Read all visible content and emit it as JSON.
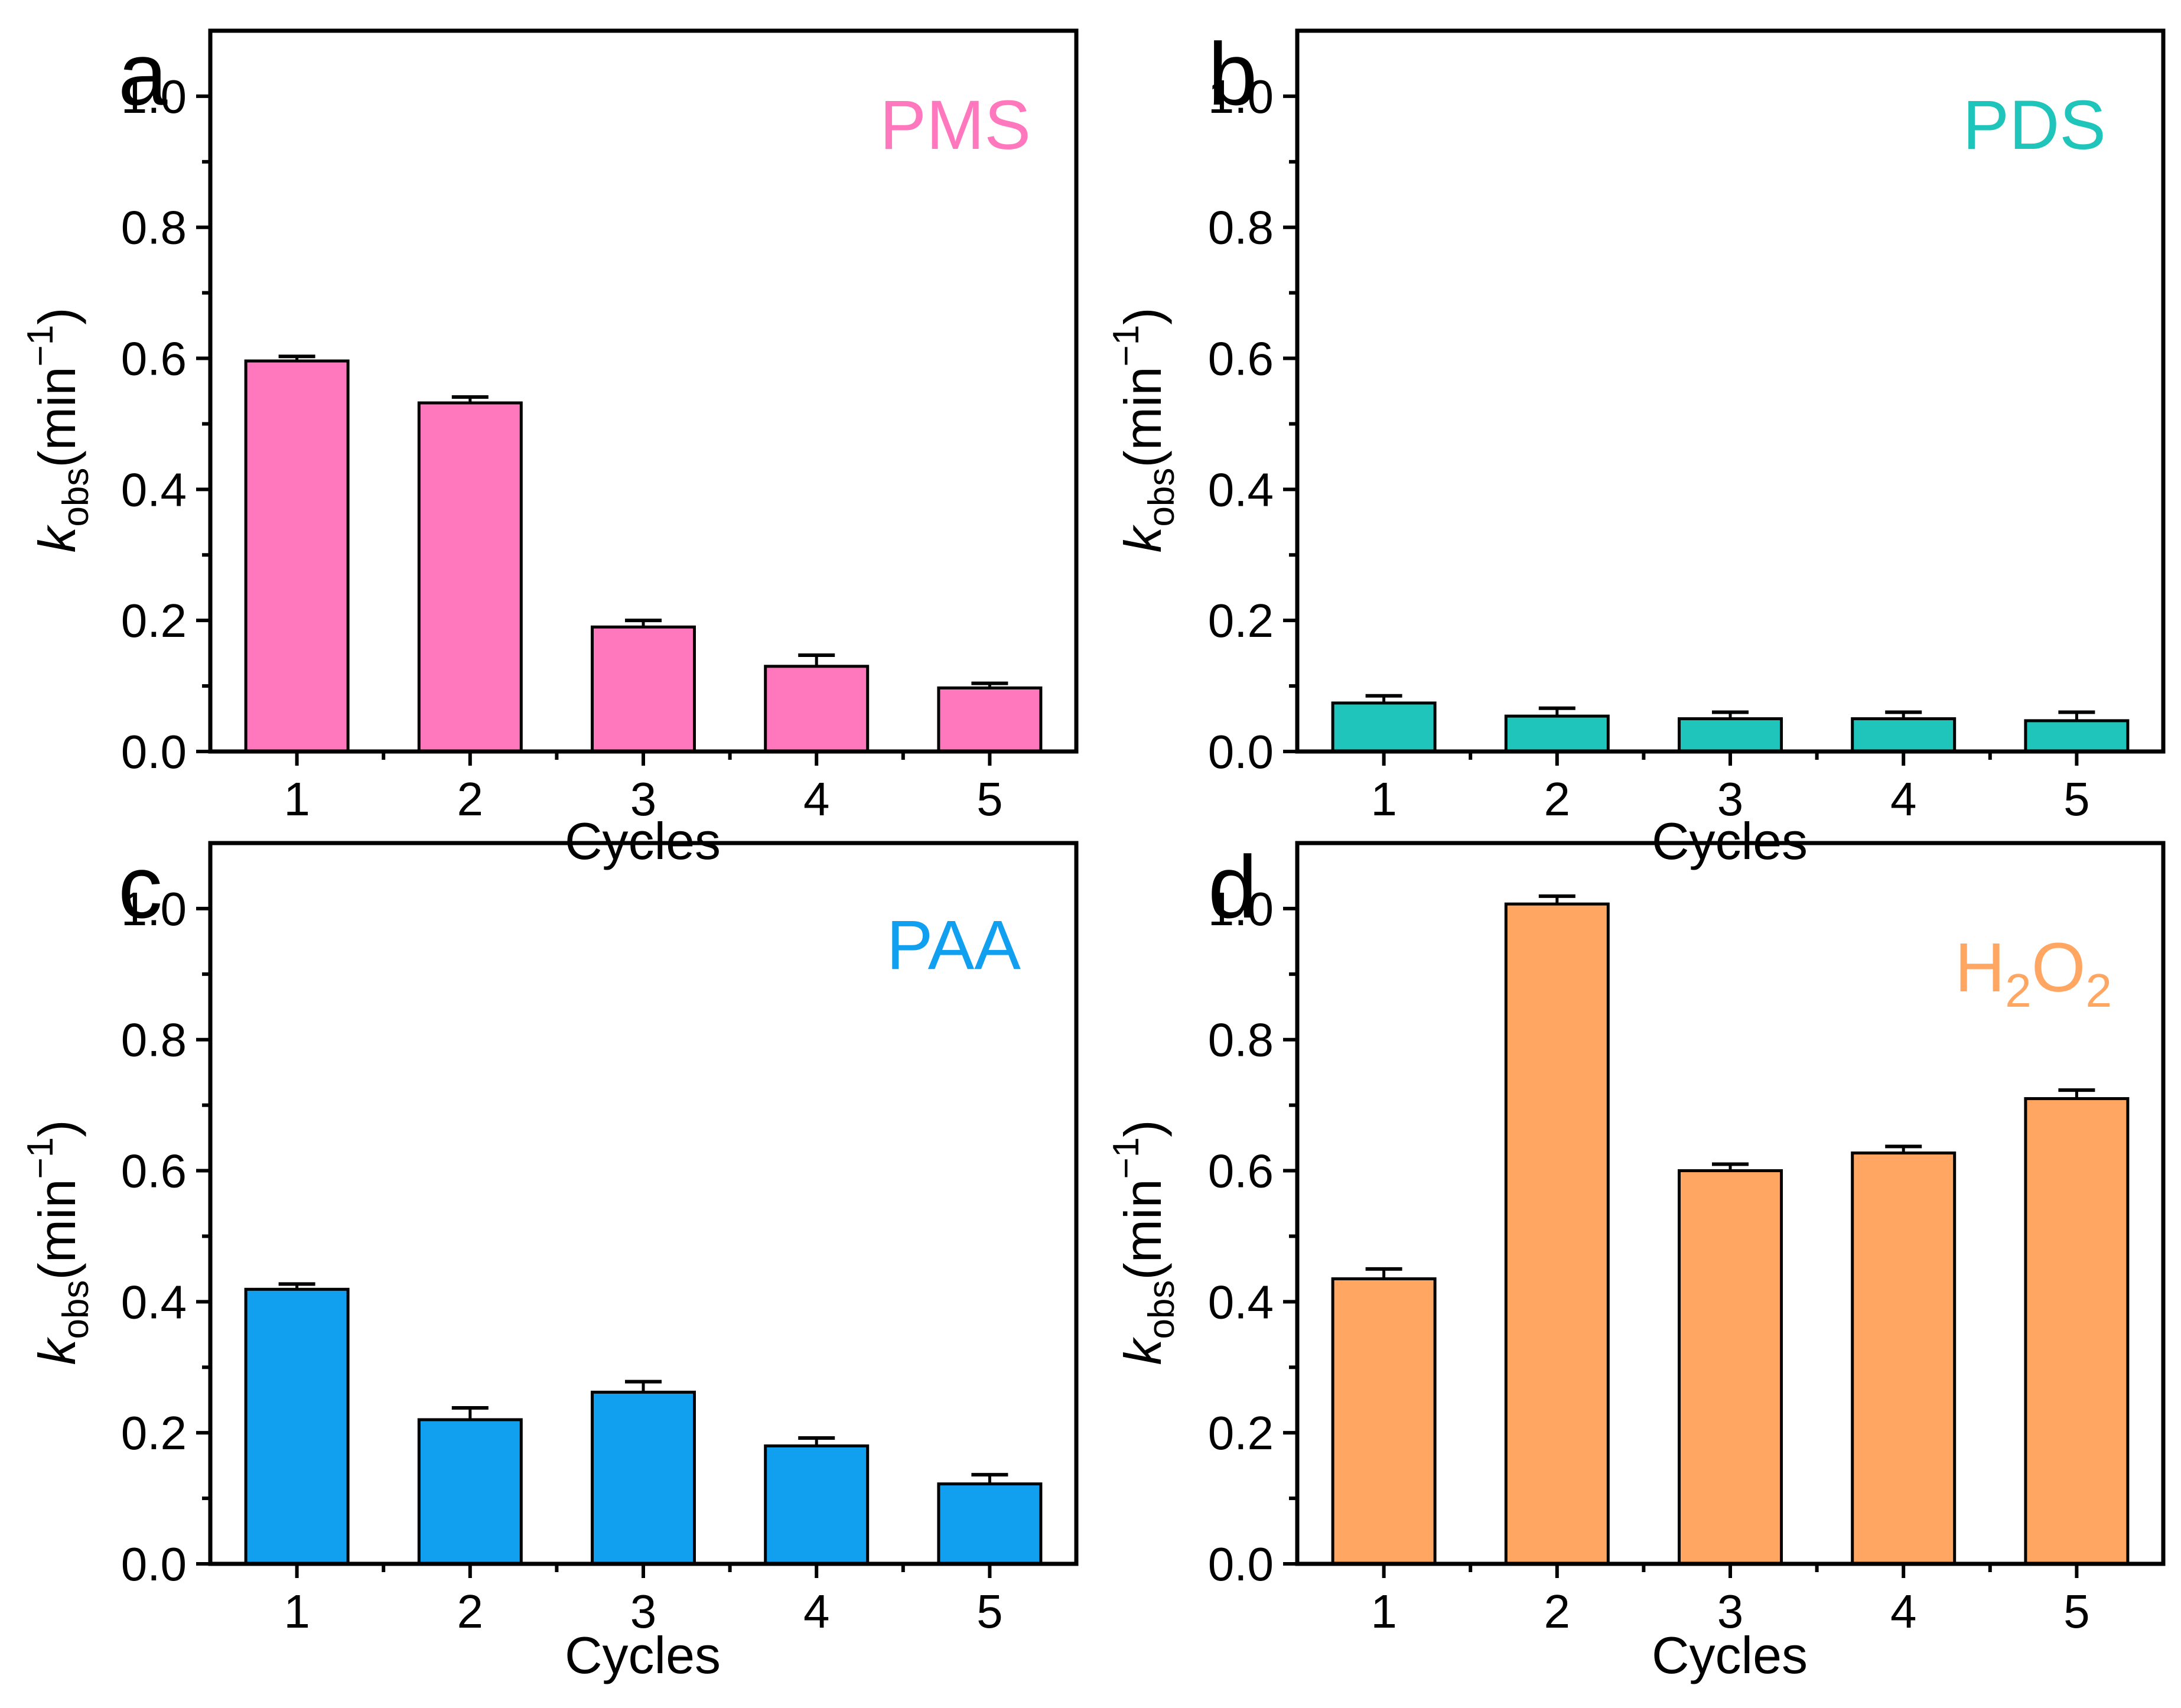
{
  "figure": {
    "y_axis": {
      "symbol": "k",
      "subscript": "obs",
      "unit_open": "(min",
      "unit_exponent": "−1",
      "unit_close": ")",
      "ylim": [
        0,
        1.1
      ],
      "ticks": [
        "0.0",
        "0.2",
        "0.4",
        "0.6",
        "0.8",
        "1.0"
      ]
    },
    "x_axis": {
      "label": "Cycles"
    }
  },
  "chart_data": [
    {
      "type": "bar",
      "panel_letter": "a",
      "oxidant_label": {
        "text": "PMS"
      },
      "color": "#FF78BE",
      "xlabel": "Cycles",
      "categories": [
        "1",
        "2",
        "3",
        "4",
        "5"
      ],
      "values": [
        0.596,
        0.532,
        0.19,
        0.13,
        0.097
      ],
      "errors": [
        0.007,
        0.009,
        0.01,
        0.017,
        0.007
      ],
      "ylim": [
        0,
        1.1
      ]
    },
    {
      "type": "bar",
      "panel_letter": "b",
      "oxidant_label": {
        "text": "PDS"
      },
      "color": "#1FC4BB",
      "xlabel": "Cycles",
      "categories": [
        "1",
        "2",
        "3",
        "4",
        "5"
      ],
      "values": [
        0.074,
        0.054,
        0.05,
        0.05,
        0.047
      ],
      "errors": [
        0.011,
        0.012,
        0.01,
        0.01,
        0.013
      ],
      "ylim": [
        0,
        1.1
      ]
    },
    {
      "type": "bar",
      "panel_letter": "c",
      "oxidant_label": {
        "text": "PAA"
      },
      "color": "#119FF0",
      "xlabel": "Cycles",
      "categories": [
        "1",
        "2",
        "3",
        "4",
        "5"
      ],
      "values": [
        0.419,
        0.22,
        0.262,
        0.18,
        0.122
      ],
      "errors": [
        0.008,
        0.018,
        0.016,
        0.012,
        0.014
      ],
      "ylim": [
        0,
        1.1
      ]
    },
    {
      "type": "bar",
      "panel_letter": "d",
      "oxidant_label": {
        "main1": "H",
        "sub1": "2",
        "main2": "O",
        "sub2": "2"
      },
      "color": "#FFA663",
      "xlabel": "Cycles",
      "categories": [
        "1",
        "2",
        "3",
        "4",
        "5"
      ],
      "values": [
        0.435,
        1.007,
        0.6,
        0.627,
        0.71
      ],
      "errors": [
        0.015,
        0.012,
        0.01,
        0.01,
        0.013
      ],
      "ylim": [
        0,
        1.1
      ]
    }
  ]
}
